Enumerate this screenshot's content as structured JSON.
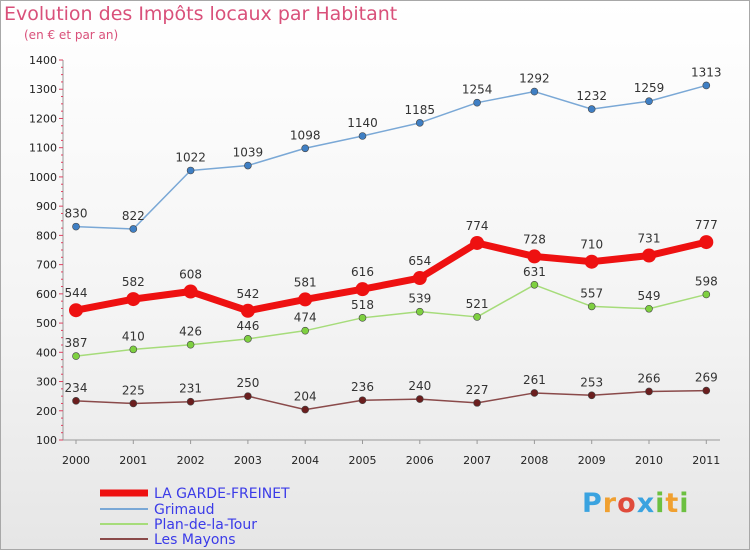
{
  "header": {
    "title": "Evolution des Impôts locaux par Habitant",
    "subtitle": "(en € et par an)"
  },
  "logo": {
    "letters": [
      "P",
      "r",
      "o",
      "x",
      "i",
      "t",
      "i"
    ],
    "colors": [
      "#3aa3e0",
      "#f0a030",
      "#e04b3b",
      "#3aa3e0",
      "#6cc040",
      "#f0a030",
      "#6cc040"
    ]
  },
  "chart_data": {
    "type": "line",
    "title": "Evolution des Impôts locaux par Habitant",
    "subtitle": "(en € et par an)",
    "categories": [
      "2000",
      "2001",
      "2002",
      "2003",
      "2004",
      "2005",
      "2006",
      "2007",
      "2008",
      "2009",
      "2010",
      "2011"
    ],
    "ylim": [
      100,
      1400
    ],
    "yticks": [
      100,
      200,
      300,
      400,
      500,
      600,
      700,
      800,
      900,
      1000,
      1100,
      1200,
      1300,
      1400
    ],
    "grid": false,
    "legend": "bottom-left",
    "series": [
      {
        "name": "LA GARDE-FREINET",
        "color": "#ee1111",
        "marker": "#ee1111",
        "width": 7,
        "radius": 7,
        "values": [
          544,
          582,
          608,
          542,
          581,
          616,
          654,
          774,
          728,
          710,
          731,
          777
        ]
      },
      {
        "name": "Grimaud",
        "color": "#7aa8d6",
        "marker": "#3f7fc4",
        "width": 1.5,
        "radius": 3.5,
        "values": [
          830,
          822,
          1022,
          1039,
          1098,
          1140,
          1185,
          1254,
          1292,
          1232,
          1259,
          1313
        ]
      },
      {
        "name": "Plan-de-la-Tour",
        "color": "#a6dc7a",
        "marker": "#7ed040",
        "width": 1.5,
        "radius": 3.5,
        "values": [
          387,
          410,
          426,
          446,
          474,
          518,
          539,
          521,
          631,
          557,
          549,
          598
        ]
      },
      {
        "name": "Les Mayons",
        "color": "#8a4a4a",
        "marker": "#6b1e1e",
        "width": 1.5,
        "radius": 3.5,
        "values": [
          234,
          225,
          231,
          250,
          204,
          236,
          240,
          227,
          261,
          253,
          266,
          269
        ]
      }
    ]
  }
}
